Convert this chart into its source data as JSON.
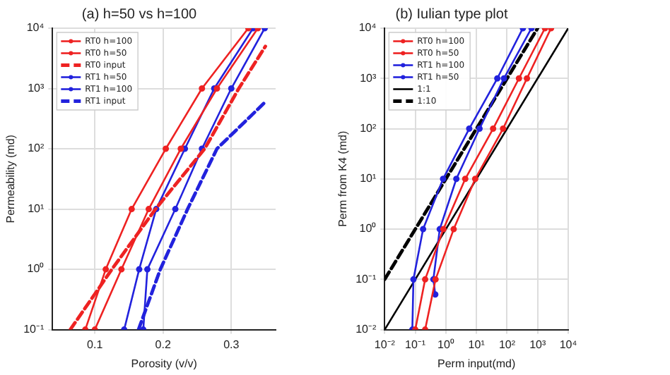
{
  "chart_data": [
    {
      "type": "line",
      "title": "(a) h=50 vs h=100",
      "xlabel": "Porosity (v/v)",
      "ylabel": "Permeability (md)",
      "log": "y",
      "grid": true,
      "legend": "top left",
      "xlim": [
        0.038,
        0.365
      ],
      "xticks": [
        0.1,
        0.2,
        0.3
      ],
      "ylim": [
        0.1,
        10000
      ],
      "yticks": [
        {
          "value": 0.1,
          "label": "10⁻¹"
        },
        {
          "value": 1,
          "label": "10⁰"
        },
        {
          "value": 10,
          "label": "10¹"
        },
        {
          "value": 100,
          "label": "10²"
        },
        {
          "value": 1000,
          "label": "10³"
        },
        {
          "value": 10000,
          "label": "10⁴"
        }
      ],
      "series": [
        {
          "name": "RT0 h=100",
          "color": "#ee2222",
          "marker": "circle",
          "line_style": "solid",
          "x": [
            0.086,
            0.116,
            0.154,
            0.204,
            0.257,
            0.325
          ],
          "values": [
            0.1,
            1,
            10,
            100,
            1000,
            10000
          ]
        },
        {
          "name": "RT0 h=50",
          "color": "#ee2222",
          "marker": "circle",
          "line_style": "solid",
          "x": [
            0.1,
            0.139,
            0.179,
            0.226,
            0.279,
            0.339
          ],
          "values": [
            0.1,
            1,
            10,
            100,
            1000,
            10000
          ]
        },
        {
          "name": "RT0 input",
          "color": "#ee2222",
          "marker": "none",
          "line_style": "dashed",
          "x": [
            0.064,
            0.125,
            0.189,
            0.261,
            0.311,
            0.35
          ],
          "values": [
            0.1,
            1,
            10,
            100,
            1000,
            5000
          ]
        },
        {
          "name": "RT1 h=50",
          "color": "#2222dd",
          "marker": "circle",
          "line_style": "solid",
          "x": [
            0.143,
            0.165,
            0.19,
            0.232,
            0.275,
            0.332
          ],
          "values": [
            0.1,
            1,
            10,
            100,
            1000,
            10000
          ]
        },
        {
          "name": "RT1 h=100",
          "color": "#2222dd",
          "marker": "circle",
          "line_style": "solid",
          "x": [
            0.171,
            0.177,
            0.218,
            0.257,
            0.3,
            0.349
          ],
          "values": [
            0.1,
            1,
            10,
            100,
            1000,
            10000
          ]
        },
        {
          "name": "RT1 input",
          "color": "#2222dd",
          "marker": "none",
          "line_style": "dashed",
          "x": [
            0.164,
            0.196,
            0.236,
            0.279,
            0.35
          ],
          "values": [
            0.1,
            1,
            10,
            100,
            600
          ]
        }
      ]
    },
    {
      "type": "line",
      "title": "(b) Iulian type plot",
      "xlabel": "Perm input(md)",
      "ylabel": "Perm from K4 (md)",
      "log": "xy",
      "grid": true,
      "legend": "top left",
      "xlim": [
        0.01,
        10000
      ],
      "xticks": [
        {
          "value": 0.01,
          "label": "10⁻²"
        },
        {
          "value": 0.1,
          "label": "10⁻¹"
        },
        {
          "value": 1,
          "label": "10⁰"
        },
        {
          "value": 10,
          "label": "10¹"
        },
        {
          "value": 100,
          "label": "10²"
        },
        {
          "value": 1000,
          "label": "10³"
        },
        {
          "value": 10000,
          "label": "10⁴"
        }
      ],
      "ylim": [
        0.01,
        10000
      ],
      "yticks": [
        {
          "value": 0.01,
          "label": "10⁻²"
        },
        {
          "value": 0.1,
          "label": "10⁻¹"
        },
        {
          "value": 1,
          "label": "10⁰"
        },
        {
          "value": 10,
          "label": "10¹"
        },
        {
          "value": 100,
          "label": "10²"
        },
        {
          "value": 1000,
          "label": "10³"
        },
        {
          "value": 10000,
          "label": "10⁴"
        }
      ],
      "series": [
        {
          "name": "RT0 h=100",
          "color": "#ee2222",
          "marker": "circle",
          "line_style": "solid",
          "x": [
            0.1,
            0.21,
            0.83,
            4.3,
            35,
            245,
            1740
          ],
          "values": [
            0.01,
            0.1,
            1,
            10,
            100,
            1000,
            10000
          ]
        },
        {
          "name": "RT0 h=50",
          "color": "#ee2222",
          "marker": "circle",
          "line_style": "solid",
          "x": [
            0.21,
            0.46,
            1.8,
            9.1,
            74,
            447,
            2750
          ],
          "values": [
            0.01,
            0.1,
            1,
            10,
            100,
            1000,
            10000
          ]
        },
        {
          "name": "RT1 h=100",
          "color": "#2222dd",
          "marker": "circle",
          "line_style": "solid",
          "x": [
            0.08,
            0.087,
            0.18,
            0.81,
            5.8,
            48,
            330
          ],
          "values": [
            0.01,
            0.1,
            1,
            10,
            100,
            1000,
            10000
          ]
        },
        {
          "name": "RT1 h=50",
          "color": "#2222dd",
          "marker": "circle",
          "line_style": "solid",
          "x": [
            0.45,
            0.39,
            0.63,
            2.2,
            12.6,
            79,
            630
          ],
          "values": [
            0.05,
            0.1,
            1,
            10,
            100,
            1000,
            10000
          ]
        },
        {
          "name": "1:1",
          "color": "#000000",
          "marker": "none",
          "line_style": "solid",
          "x": [
            0.01,
            10000
          ],
          "values": [
            0.01,
            10000
          ]
        },
        {
          "name": "1:10",
          "color": "#000000",
          "marker": "none",
          "line_style": "dashed",
          "x": [
            0.01,
            1000
          ],
          "values": [
            0.1,
            10000
          ]
        }
      ]
    }
  ]
}
